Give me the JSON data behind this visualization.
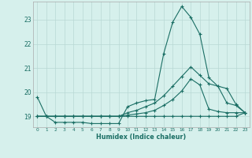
{
  "xlabel": "Humidex (Indice chaleur)",
  "ylabel": "",
  "background_color": "#d6f0ec",
  "grid_color": "#b8d8d4",
  "line_color": "#1a6e64",
  "x_ticks": [
    0,
    1,
    2,
    3,
    4,
    5,
    6,
    7,
    8,
    9,
    10,
    11,
    12,
    13,
    14,
    15,
    16,
    17,
    18,
    19,
    20,
    21,
    22,
    23
  ],
  "y_ticks": [
    19,
    20,
    21,
    22,
    23
  ],
  "ylim": [
    18.55,
    23.75
  ],
  "xlim": [
    -0.5,
    23.5
  ],
  "series": [
    [
      19.8,
      19.0,
      18.75,
      18.75,
      18.75,
      18.75,
      18.7,
      18.7,
      18.7,
      18.7,
      19.4,
      19.55,
      19.65,
      19.7,
      21.6,
      22.9,
      23.55,
      23.1,
      22.4,
      20.6,
      20.25,
      19.55,
      19.45,
      19.15
    ],
    [
      19.0,
      19.0,
      19.0,
      19.0,
      19.0,
      19.0,
      19.0,
      19.0,
      19.0,
      19.0,
      19.15,
      19.25,
      19.4,
      19.55,
      19.85,
      20.25,
      20.65,
      21.05,
      20.7,
      20.35,
      20.25,
      20.15,
      19.5,
      19.15
    ],
    [
      19.0,
      19.0,
      19.0,
      19.0,
      19.0,
      19.0,
      19.0,
      19.0,
      19.0,
      19.0,
      19.05,
      19.1,
      19.15,
      19.25,
      19.45,
      19.7,
      20.05,
      20.55,
      20.3,
      19.3,
      19.2,
      19.15,
      19.15,
      19.15
    ],
    [
      19.0,
      19.0,
      19.0,
      19.0,
      19.0,
      19.0,
      19.0,
      19.0,
      19.0,
      19.0,
      19.0,
      19.0,
      19.0,
      19.0,
      19.0,
      19.0,
      19.0,
      19.0,
      19.0,
      19.0,
      19.0,
      19.0,
      19.0,
      19.15
    ]
  ]
}
